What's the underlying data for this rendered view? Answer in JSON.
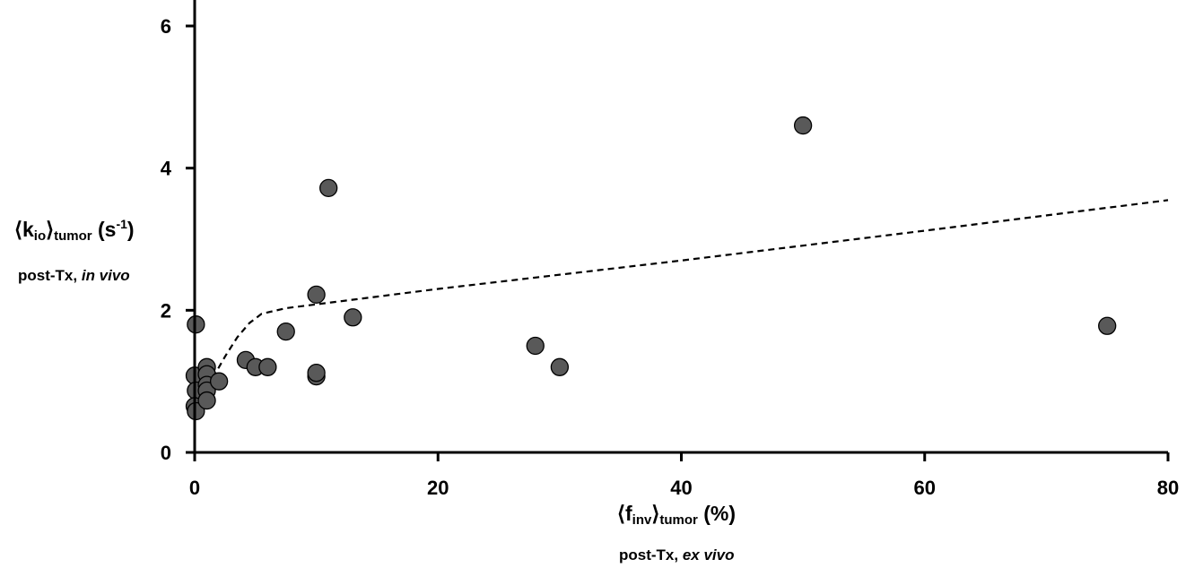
{
  "chart_data": {
    "type": "scatter",
    "xlabel": {
      "bracket_open": "⟨",
      "symbol": "f",
      "symbol_sub": "inv",
      "bracket_close": "⟩",
      "sub": "tumor",
      "unit": " (%)"
    },
    "xlabel_line2": {
      "prefix": "post-Tx, ",
      "italic": "ex vivo"
    },
    "ylabel": {
      "bracket_open": "⟨",
      "symbol": "k",
      "symbol_sub": "io",
      "bracket_close": "⟩",
      "sub": "tumor",
      "unit_pre": " (s",
      "unit_sup": "-1",
      "unit_post": ")"
    },
    "ylabel_line2": {
      "prefix": "post-Tx, ",
      "italic": "in vivo"
    },
    "xlim": [
      0,
      80
    ],
    "ylim": [
      0,
      6.3
    ],
    "xticks": [
      0,
      20,
      40,
      60,
      80
    ],
    "yticks": [
      0,
      2,
      4,
      6
    ],
    "grid": false,
    "legend": "none",
    "marker_fill": "#595959",
    "marker_stroke": "#000000",
    "line_color": "#000000",
    "points": [
      {
        "x": 0.1,
        "y": 1.8
      },
      {
        "x": 0.0,
        "y": 1.08
      },
      {
        "x": 0.1,
        "y": 0.87
      },
      {
        "x": 0.0,
        "y": 0.65
      },
      {
        "x": 0.1,
        "y": 0.58
      },
      {
        "x": 1.0,
        "y": 1.2
      },
      {
        "x": 1.0,
        "y": 1.1
      },
      {
        "x": 1.0,
        "y": 0.95
      },
      {
        "x": 1.0,
        "y": 0.87
      },
      {
        "x": 1.0,
        "y": 0.73
      },
      {
        "x": 2.0,
        "y": 1.0
      },
      {
        "x": 4.2,
        "y": 1.3
      },
      {
        "x": 5.0,
        "y": 1.2
      },
      {
        "x": 6.0,
        "y": 1.2
      },
      {
        "x": 7.5,
        "y": 1.7
      },
      {
        "x": 10.0,
        "y": 2.22
      },
      {
        "x": 10.0,
        "y": 1.07
      },
      {
        "x": 10.0,
        "y": 1.12
      },
      {
        "x": 11.0,
        "y": 3.72
      },
      {
        "x": 13.0,
        "y": 1.9
      },
      {
        "x": 28.0,
        "y": 1.5
      },
      {
        "x": 30.0,
        "y": 1.2
      },
      {
        "x": 50.0,
        "y": 4.6
      },
      {
        "x": 75.0,
        "y": 1.78
      }
    ],
    "fit_line": [
      {
        "x": 0.5,
        "y": 0.8
      },
      {
        "x": 1.5,
        "y": 1.05
      },
      {
        "x": 2.5,
        "y": 1.35
      },
      {
        "x": 3.5,
        "y": 1.62
      },
      {
        "x": 4.5,
        "y": 1.82
      },
      {
        "x": 5.5,
        "y": 1.95
      },
      {
        "x": 7.5,
        "y": 2.03
      },
      {
        "x": 20,
        "y": 2.3
      },
      {
        "x": 40,
        "y": 2.7
      },
      {
        "x": 60,
        "y": 3.12
      },
      {
        "x": 80,
        "y": 3.55
      }
    ]
  }
}
